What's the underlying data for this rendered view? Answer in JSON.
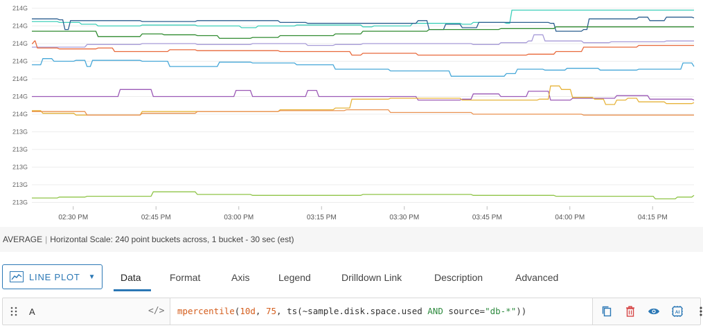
{
  "chart_data": {
    "type": "line",
    "y_tick_labels": [
      "214G",
      "214G",
      "214G",
      "214G",
      "214G",
      "214G",
      "214G",
      "213G",
      "213G",
      "213G",
      "213G",
      "213G"
    ],
    "x_tick_labels": [
      "02:30 PM",
      "02:45 PM",
      "03:00 PM",
      "03:15 PM",
      "03:30 PM",
      "03:45 PM",
      "04:00 PM",
      "04:15 PM"
    ],
    "x_domain_minutes": [
      0,
      120
    ],
    "y_domain_level": [
      0,
      12
    ],
    "series": [
      {
        "color": "#3ccfb9",
        "points": [
          [
            0,
            0.75
          ],
          [
            5,
            0.8
          ],
          [
            9,
            0.9
          ],
          [
            12,
            1.0
          ],
          [
            20,
            0.95
          ],
          [
            30,
            1.0
          ],
          [
            38,
            1.1
          ],
          [
            41,
            1.0
          ],
          [
            48,
            0.95
          ],
          [
            60,
            1.05
          ],
          [
            62,
            1.0
          ],
          [
            69,
            0.85
          ],
          [
            75,
            0.85
          ],
          [
            78,
            0.9
          ],
          [
            80,
            0.8
          ],
          [
            86,
            0.85
          ],
          [
            87,
            0.1
          ],
          [
            104,
            0.1
          ],
          [
            114,
            0.1
          ],
          [
            120,
            0.1
          ]
        ]
      },
      {
        "color": "#2a5d8f",
        "points": [
          [
            0,
            0.6
          ],
          [
            5,
            0.65
          ],
          [
            6,
            1.2
          ],
          [
            7,
            0.7
          ],
          [
            20,
            0.75
          ],
          [
            30,
            0.7
          ],
          [
            45,
            0.8
          ],
          [
            50,
            0.85
          ],
          [
            56,
            0.85
          ],
          [
            70,
            0.7
          ],
          [
            72,
            1.2
          ],
          [
            75,
            0.9
          ],
          [
            78,
            1.1
          ],
          [
            81,
            0.8
          ],
          [
            94,
            0.85
          ],
          [
            95,
            1.3
          ],
          [
            100,
            1.2
          ],
          [
            101,
            0.6
          ],
          [
            110,
            0.5
          ],
          [
            112,
            0.7
          ],
          [
            115,
            0.5
          ],
          [
            120,
            0.55
          ]
        ]
      },
      {
        "color": "#2f8a2f",
        "points": [
          [
            0,
            1.3
          ],
          [
            10,
            1.3
          ],
          [
            12,
            1.6
          ],
          [
            18,
            1.6
          ],
          [
            20,
            1.45
          ],
          [
            24,
            1.5
          ],
          [
            30,
            1.55
          ],
          [
            34,
            1.7
          ],
          [
            40,
            1.65
          ],
          [
            45,
            1.55
          ],
          [
            52,
            1.55
          ],
          [
            55,
            1.45
          ],
          [
            60,
            1.3
          ],
          [
            70,
            1.3
          ],
          [
            72,
            1.2
          ],
          [
            85,
            1.15
          ],
          [
            95,
            1.05
          ],
          [
            100,
            1.05
          ],
          [
            110,
            1.05
          ],
          [
            120,
            1.05
          ]
        ]
      },
      {
        "color": "#a79bd8",
        "points": [
          [
            0,
            2.2
          ],
          [
            10,
            2.05
          ],
          [
            20,
            2.0
          ],
          [
            30,
            2.05
          ],
          [
            40,
            2.0
          ],
          [
            50,
            2.1
          ],
          [
            55,
            2.05
          ],
          [
            60,
            2.0
          ],
          [
            70,
            2.0
          ],
          [
            80,
            2.05
          ],
          [
            85,
            1.95
          ],
          [
            90,
            1.85
          ],
          [
            91,
            1.5
          ],
          [
            93,
            1.85
          ],
          [
            100,
            1.95
          ],
          [
            105,
            1.9
          ],
          [
            110,
            1.9
          ],
          [
            115,
            1.85
          ],
          [
            120,
            1.85
          ]
        ]
      },
      {
        "color": "#e8683a",
        "points": [
          [
            0,
            2.0
          ],
          [
            0.5,
            1.85
          ],
          [
            1,
            2.25
          ],
          [
            5,
            2.3
          ],
          [
            12,
            2.25
          ],
          [
            15,
            2.45
          ],
          [
            20,
            2.45
          ],
          [
            25,
            2.35
          ],
          [
            30,
            2.4
          ],
          [
            45,
            2.45
          ],
          [
            55,
            2.45
          ],
          [
            58,
            2.65
          ],
          [
            60,
            2.55
          ],
          [
            65,
            2.55
          ],
          [
            70,
            2.65
          ],
          [
            80,
            2.65
          ],
          [
            90,
            2.6
          ],
          [
            95,
            2.45
          ],
          [
            100,
            2.2
          ],
          [
            110,
            2.1
          ],
          [
            120,
            2.1
          ]
        ]
      },
      {
        "color": "#46a7d8",
        "points": [
          [
            0,
            3.2
          ],
          [
            2,
            2.85
          ],
          [
            4,
            3.0
          ],
          [
            8,
            2.95
          ],
          [
            10,
            3.3
          ],
          [
            11,
            2.95
          ],
          [
            20,
            3.0
          ],
          [
            25,
            3.3
          ],
          [
            30,
            3.3
          ],
          [
            34,
            3.05
          ],
          [
            40,
            3.1
          ],
          [
            48,
            3.2
          ],
          [
            55,
            3.45
          ],
          [
            60,
            3.45
          ],
          [
            65,
            3.55
          ],
          [
            73,
            3.55
          ],
          [
            76,
            3.85
          ],
          [
            80,
            3.85
          ],
          [
            86,
            3.7
          ],
          [
            88,
            3.45
          ],
          [
            93,
            3.5
          ],
          [
            97,
            3.4
          ],
          [
            103,
            3.5
          ],
          [
            110,
            3.45
          ],
          [
            118,
            3.1
          ],
          [
            120,
            3.3
          ]
        ]
      },
      {
        "color": "#9b59b6",
        "points": [
          [
            0,
            5.0
          ],
          [
            15,
            5.0
          ],
          [
            16,
            4.6
          ],
          [
            20,
            4.6
          ],
          [
            22,
            5.0
          ],
          [
            35,
            5.0
          ],
          [
            37,
            4.65
          ],
          [
            40,
            5.0
          ],
          [
            48,
            5.0
          ],
          [
            50,
            4.65
          ],
          [
            52,
            5.0
          ],
          [
            65,
            5.0
          ],
          [
            70,
            5.2
          ],
          [
            78,
            5.15
          ],
          [
            80,
            4.85
          ],
          [
            85,
            5.0
          ],
          [
            90,
            4.7
          ],
          [
            94,
            5.2
          ],
          [
            98,
            5.1
          ],
          [
            106,
            4.95
          ],
          [
            112,
            5.15
          ],
          [
            120,
            5.2
          ]
        ]
      },
      {
        "color": "#e6b33a",
        "points": [
          [
            0,
            5.8
          ],
          [
            2,
            5.95
          ],
          [
            8,
            6.05
          ],
          [
            20,
            5.85
          ],
          [
            30,
            5.85
          ],
          [
            45,
            5.75
          ],
          [
            55,
            5.65
          ],
          [
            58,
            5.15
          ],
          [
            65,
            5.1
          ],
          [
            75,
            5.1
          ],
          [
            78,
            5.2
          ],
          [
            92,
            5.15
          ],
          [
            94,
            4.4
          ],
          [
            96,
            4.6
          ],
          [
            98,
            5.05
          ],
          [
            102,
            5.15
          ],
          [
            104,
            5.45
          ],
          [
            106,
            5.2
          ],
          [
            108,
            5.1
          ],
          [
            110,
            5.3
          ],
          [
            115,
            5.4
          ],
          [
            120,
            5.35
          ]
        ]
      },
      {
        "color": "#e9914f",
        "points": [
          [
            0,
            5.85
          ],
          [
            10,
            6.05
          ],
          [
            20,
            5.95
          ],
          [
            30,
            5.85
          ],
          [
            45,
            5.8
          ],
          [
            52,
            5.8
          ],
          [
            57,
            5.75
          ],
          [
            62,
            5.75
          ],
          [
            65,
            5.9
          ],
          [
            72,
            5.9
          ],
          [
            80,
            6.0
          ],
          [
            90,
            6.0
          ],
          [
            100,
            6.05
          ],
          [
            110,
            6.05
          ],
          [
            120,
            6.05
          ]
        ]
      },
      {
        "color": "#8fc447",
        "points": [
          [
            0,
            10.75
          ],
          [
            5,
            10.7
          ],
          [
            10,
            10.65
          ],
          [
            20,
            10.65
          ],
          [
            22,
            10.4
          ],
          [
            28,
            10.4
          ],
          [
            30,
            10.55
          ],
          [
            36,
            10.55
          ],
          [
            40,
            10.6
          ],
          [
            55,
            10.6
          ],
          [
            60,
            10.55
          ],
          [
            70,
            10.55
          ],
          [
            80,
            10.6
          ],
          [
            90,
            10.6
          ],
          [
            95,
            10.65
          ],
          [
            100,
            10.65
          ],
          [
            110,
            10.65
          ],
          [
            113,
            10.8
          ],
          [
            117,
            10.7
          ],
          [
            120,
            10.6
          ]
        ]
      }
    ]
  },
  "status": {
    "aggregation": "AVERAGE",
    "separator": "|",
    "scale_text": "Horizontal Scale: 240 point buckets across, 1 bucket - 30 sec (est)"
  },
  "plot_type": {
    "label": "LINE PLOT",
    "icon": "line-plot-icon"
  },
  "tabs": [
    {
      "label": "Data",
      "active": true
    },
    {
      "label": "Format"
    },
    {
      "label": "Axis"
    },
    {
      "label": "Legend"
    },
    {
      "label": "Drilldown Link"
    },
    {
      "label": "Description"
    },
    {
      "label": "Advanced"
    }
  ],
  "query": {
    "label": "A",
    "code_toggle": "</>",
    "tokens": [
      {
        "t": "mpercentile",
        "c": "q-fn"
      },
      {
        "t": "(",
        "c": "q-txt"
      },
      {
        "t": "10d",
        "c": "q-num"
      },
      {
        "t": ", ",
        "c": "q-txt"
      },
      {
        "t": "75",
        "c": "q-num"
      },
      {
        "t": ", ts(~sample.disk.space.used ",
        "c": "q-txt"
      },
      {
        "t": "AND",
        "c": "q-kw"
      },
      {
        "t": " source=",
        "c": "q-txt"
      },
      {
        "t": "\"db-*\"",
        "c": "q-str"
      },
      {
        "t": "))",
        "c": "q-txt"
      }
    ],
    "actions": [
      "copy-icon",
      "trash-icon",
      "eye-icon",
      "ai-icon",
      "more-vertical-icon"
    ],
    "colors": {
      "copy": "#2a77b5",
      "trash": "#d64545",
      "eye": "#2a77b5",
      "ai": "#2a77b5"
    },
    "ai_label": "AI"
  }
}
